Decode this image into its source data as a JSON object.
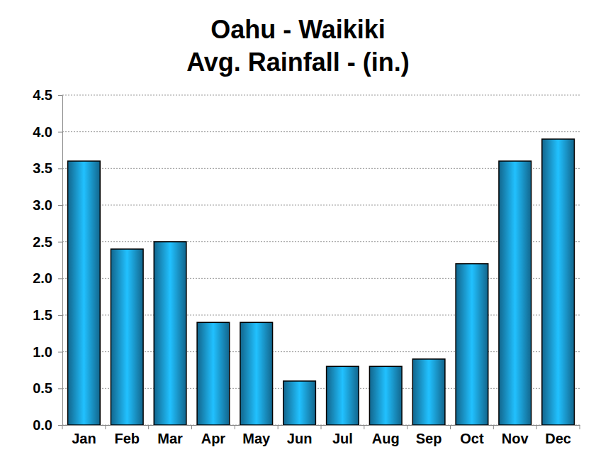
{
  "chart_data": {
    "type": "bar",
    "title": "Oahu - Waikiki",
    "subtitle": "Avg. Rainfall - (in.)",
    "categories": [
      "Jan",
      "Feb",
      "Mar",
      "Apr",
      "May",
      "Jun",
      "Jul",
      "Aug",
      "Sep",
      "Oct",
      "Nov",
      "Dec"
    ],
    "values": [
      3.6,
      2.4,
      2.5,
      1.4,
      1.4,
      0.6,
      0.8,
      0.8,
      0.9,
      2.2,
      3.6,
      3.9
    ],
    "color": "#1a96d0",
    "ylim": [
      0,
      4.5
    ],
    "yticks": [
      {
        "value": 0,
        "label": "0.0"
      },
      {
        "value": 0.5,
        "label": "0.5"
      },
      {
        "value": 1,
        "label": "1.0"
      },
      {
        "value": 1.5,
        "label": "1.5"
      },
      {
        "value": 2,
        "label": "2.0"
      },
      {
        "value": 2.5,
        "label": "2.5"
      },
      {
        "value": 3,
        "label": "3.0"
      },
      {
        "value": 3.5,
        "label": "3.5"
      },
      {
        "value": 4,
        "label": "4.0"
      },
      {
        "value": 4.5,
        "label": "4.5"
      }
    ],
    "grid": true
  }
}
